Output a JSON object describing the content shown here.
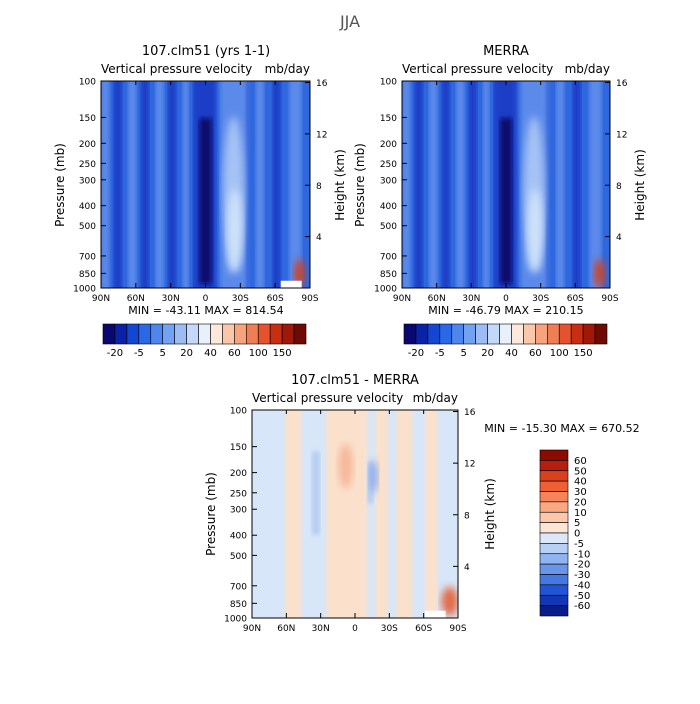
{
  "figure_title": "JJA",
  "chart_data": [
    {
      "type": "heatmap",
      "title": "107.clm51 (yrs 1-1)",
      "subtitle_left": "Vertical pressure velocity",
      "subtitle_right": "mb/day",
      "xlabel": "",
      "ylabel": "Pressure (mb)",
      "y2label": "Height (km)",
      "x_ticks": [
        "90N",
        "60N",
        "30N",
        "0",
        "30S",
        "60S",
        "90S"
      ],
      "y_ticks": [
        "100",
        "150",
        "200",
        "250",
        "300",
        "400",
        "500",
        "700",
        "850",
        "1000"
      ],
      "y_ticks_pressure": [
        100,
        150,
        200,
        250,
        300,
        400,
        500,
        700,
        850,
        1000
      ],
      "y2_ticks": [
        "16",
        "12",
        "8",
        "4"
      ],
      "y2_ticks_height_km": [
        16,
        12,
        8,
        4
      ],
      "ylim": [
        1000,
        100
      ],
      "xlim": [
        "90N",
        "90S"
      ],
      "y_scale": "log",
      "stats_text": "MIN = -43.11   MAX = 814.54",
      "min": -43.11,
      "max": 814.54,
      "colorbar": {
        "orientation": "horizontal",
        "labels": [
          "-20",
          "-5",
          "5",
          "20",
          "40",
          "60",
          "100",
          "150"
        ],
        "colors": [
          "#08086e",
          "#0a22a8",
          "#1446d2",
          "#2a68e8",
          "#4d86ee",
          "#73a2f2",
          "#9cbcf6",
          "#c4d8fa",
          "#e8f0fc",
          "#fde8dc",
          "#f9c8aa",
          "#f6a47e",
          "#f07e54",
          "#e4532e",
          "#c82e12",
          "#a01808",
          "#6e0a02"
        ]
      },
      "field_colors": {
        "deep": "#08086e",
        "strong": "#1a3cc6",
        "base": "#2f67df",
        "mid": "#5c8aea",
        "light": "#a5c3f5",
        "pale": "#cfe2fa",
        "red": "#d2401c"
      }
    },
    {
      "type": "heatmap",
      "title": "MERRA",
      "subtitle_left": "Vertical pressure velocity",
      "subtitle_right": "mb/day",
      "xlabel": "",
      "ylabel": "Pressure (mb)",
      "y2label": "Height (km)",
      "x_ticks": [
        "90N",
        "60N",
        "30N",
        "0",
        "30S",
        "60S",
        "90S"
      ],
      "y_ticks": [
        "100",
        "150",
        "200",
        "250",
        "300",
        "400",
        "500",
        "700",
        "850",
        "1000"
      ],
      "y_ticks_pressure": [
        100,
        150,
        200,
        250,
        300,
        400,
        500,
        700,
        850,
        1000
      ],
      "y2_ticks": [
        "16",
        "12",
        "8",
        "4"
      ],
      "y2_ticks_height_km": [
        16,
        12,
        8,
        4
      ],
      "ylim": [
        1000,
        100
      ],
      "xlim": [
        "90N",
        "90S"
      ],
      "y_scale": "log",
      "stats_text": "MIN = -46.79   MAX = 210.15",
      "min": -46.79,
      "max": 210.15,
      "colorbar": {
        "orientation": "horizontal",
        "labels": [
          "-20",
          "-5",
          "5",
          "20",
          "40",
          "60",
          "100",
          "150"
        ],
        "colors": [
          "#08086e",
          "#0a22a8",
          "#1446d2",
          "#2a68e8",
          "#4d86ee",
          "#73a2f2",
          "#9cbcf6",
          "#c4d8fa",
          "#e8f0fc",
          "#fde8dc",
          "#f9c8aa",
          "#f6a47e",
          "#f07e54",
          "#e4532e",
          "#c82e12",
          "#a01808",
          "#6e0a02"
        ]
      },
      "field_colors": {
        "deep": "#08086e",
        "strong": "#1a3cc6",
        "base": "#2f67df",
        "mid": "#5c8aea",
        "light": "#a5c3f5",
        "pale": "#cfe2fa",
        "red": "#d2401c"
      }
    },
    {
      "type": "heatmap",
      "title": "107.clm51 - MERRA",
      "subtitle_left": "Vertical pressure velocity",
      "subtitle_right": "mb/day",
      "xlabel": "",
      "ylabel": "Pressure (mb)",
      "y2label": "Height (km)",
      "x_ticks": [
        "90N",
        "60N",
        "30N",
        "0",
        "30S",
        "60S",
        "90S"
      ],
      "y_ticks": [
        "100",
        "150",
        "200",
        "250",
        "300",
        "400",
        "500",
        "700",
        "850",
        "1000"
      ],
      "y_ticks_pressure": [
        100,
        150,
        200,
        250,
        300,
        400,
        500,
        700,
        850,
        1000
      ],
      "y2_ticks": [
        "16",
        "12",
        "8",
        "4"
      ],
      "y2_ticks_height_km": [
        16,
        12,
        8,
        4
      ],
      "ylim": [
        1000,
        100
      ],
      "xlim": [
        "90N",
        "90S"
      ],
      "y_scale": "log",
      "stats_text": "MIN = -15.30   MAX = 670.52",
      "min": -15.3,
      "max": 670.52,
      "colorbar": {
        "orientation": "vertical",
        "labels": [
          "60",
          "50",
          "40",
          "30",
          "20",
          "10",
          "5",
          "0",
          "-5",
          "-10",
          "-20",
          "-30",
          "-40",
          "-50",
          "-60"
        ],
        "colors": [
          "#8b0a02",
          "#b5200e",
          "#d9401e",
          "#ee6034",
          "#f6845a",
          "#f9a882",
          "#fbc8ac",
          "#fde4d4",
          "#dce8fa",
          "#b8d0f6",
          "#90b4f0",
          "#6a96ea",
          "#4478e2",
          "#2255d6",
          "#1236b4",
          "#0a1c8a"
        ]
      },
      "field_colors": {
        "base": "#d7e6f8",
        "pos": "#fbe1cc",
        "posmid": "#f6b79a",
        "posstrong": "#e26a44",
        "neg": "#b7cdf2",
        "negmid": "#8aa8ea",
        "red": "#d2401c"
      }
    }
  ]
}
